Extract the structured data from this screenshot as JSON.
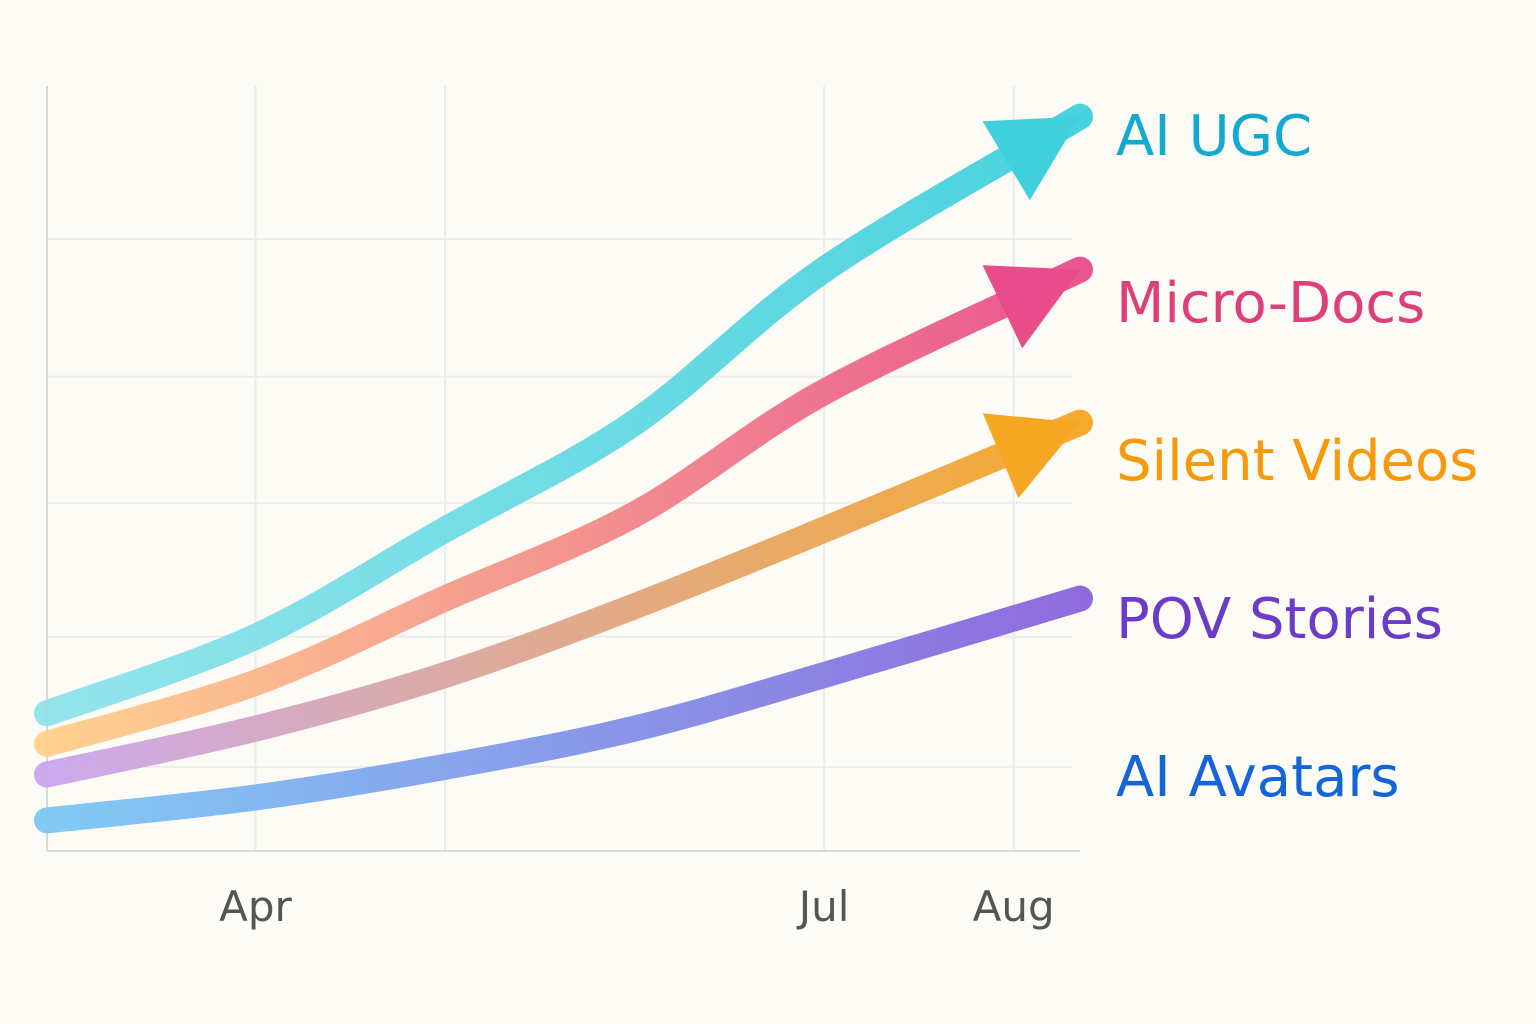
{
  "chart_data": {
    "type": "line",
    "title": "",
    "xlabel": "",
    "ylabel": "",
    "x_ticks": [
      "Apr",
      "Jul",
      "Aug"
    ],
    "x_tick_positions": [
      2,
      5,
      6
    ],
    "xlim": [
      0.9,
      6.35
    ],
    "ylim": [
      0,
      100
    ],
    "grid": true,
    "legend": "direct labels at right end of each line",
    "series": [
      {
        "name": "AI UGC",
        "color_start": "#8fe3ea",
        "color_end": "#3fd0dc",
        "label_color": "#14a9cf",
        "arrow": true,
        "points": [
          [
            0.9,
            18
          ],
          [
            2.0,
            28
          ],
          [
            3.0,
            42
          ],
          [
            4.0,
            56
          ],
          [
            5.0,
            76
          ],
          [
            6.35,
            96
          ]
        ]
      },
      {
        "name": "Micro-Docs",
        "color_start": "#ffd08a",
        "color_end": "#e84c8b",
        "label_color": "#dd3f7a",
        "arrow": true,
        "points": [
          [
            0.9,
            14
          ],
          [
            2.0,
            22
          ],
          [
            3.0,
            33
          ],
          [
            4.0,
            44
          ],
          [
            5.0,
            60
          ],
          [
            6.35,
            76
          ]
        ]
      },
      {
        "name": "Silent Videos",
        "color_start": "#c9a5ee",
        "color_end": "#f5a623",
        "label_color": "#f59a0b",
        "arrow": true,
        "points": [
          [
            0.9,
            10
          ],
          [
            2.0,
            16
          ],
          [
            3.0,
            23
          ],
          [
            4.0,
            32
          ],
          [
            5.0,
            42
          ],
          [
            6.35,
            56
          ]
        ]
      },
      {
        "name": "POV Stories",
        "color_start": "#7bc8f5",
        "color_end": "#8a63dc",
        "label_color": "#6a3cc8",
        "arrow": false,
        "points": [
          [
            0.9,
            4
          ],
          [
            2.0,
            7
          ],
          [
            3.0,
            11
          ],
          [
            4.0,
            16
          ],
          [
            5.0,
            23
          ],
          [
            6.35,
            33
          ]
        ]
      },
      {
        "name": "AI Avatars",
        "label_color": "#1565d8",
        "arrow": false,
        "points": []
      }
    ]
  }
}
